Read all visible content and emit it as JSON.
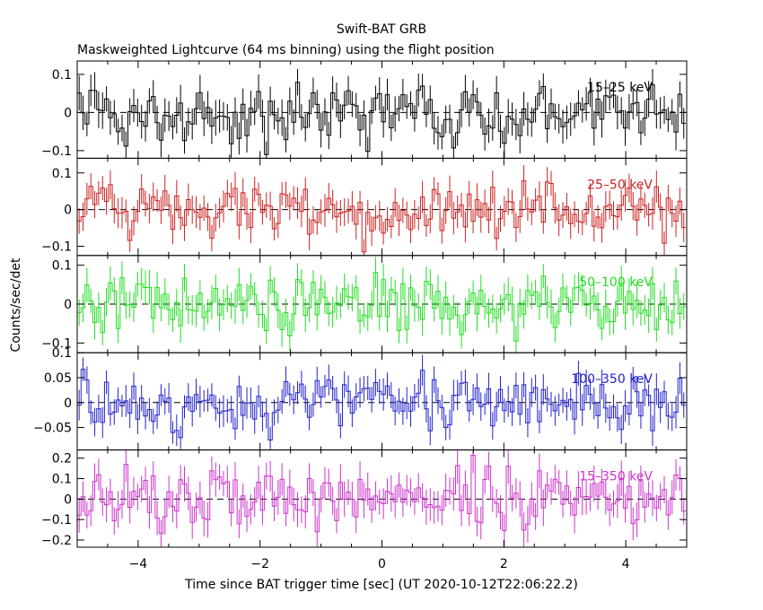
{
  "title": "Swift-BAT GRB",
  "subtitle": "Maskweighted Lightcurve (64 ms binning) using the flight position",
  "ylabel": "Counts/sec/det",
  "xlabel": "Time since BAT trigger time [sec] (UT 2020-10-12T22:06:22.2)",
  "chart_data": {
    "type": "line",
    "title": "Swift-BAT GRB",
    "subtitle": "Maskweighted Lightcurve (64 ms binning) using the flight position",
    "xlabel": "Time since BAT trigger time [sec] (UT 2020-10-12T22:06:22.2)",
    "ylabel": "Counts/sec/det",
    "xlim": [
      -5,
      5
    ],
    "x_ticks": [
      -4,
      -2,
      0,
      2,
      4
    ],
    "x_tick_labels": [
      "−4",
      "−2",
      "0",
      "2",
      "4"
    ],
    "bin_width_s": 0.064,
    "panels": [
      {
        "label": "15–25 keV",
        "color": "#000000",
        "ylim": [
          -0.12,
          0.135
        ],
        "y_ticks": [
          -0.1,
          0,
          0.1
        ],
        "y_tick_labels": [
          "−0.1",
          "0",
          "0.1"
        ],
        "noise": 0.04
      },
      {
        "label": "25–50 keV",
        "color": "#cc2222",
        "ylim": [
          -0.125,
          0.14
        ],
        "y_ticks": [
          -0.1,
          0,
          0.1
        ],
        "y_tick_labels": [
          "−0.1",
          "0",
          "0.1"
        ],
        "noise": 0.038
      },
      {
        "label": "50–100 keV",
        "color": "#22dd22",
        "ylim": [
          -0.125,
          0.125
        ],
        "y_ticks": [
          -0.1,
          0,
          0.1
        ],
        "y_tick_labels": [
          "−0.1",
          "0",
          "0.1"
        ],
        "noise": 0.038
      },
      {
        "label": "100–350 keV",
        "color": "#2222cc",
        "ylim": [
          -0.095,
          0.1
        ],
        "y_ticks": [
          -0.05,
          0,
          0.05,
          0.1
        ],
        "y_tick_labels": [
          "−0.05",
          "0",
          "0.05",
          "0.1"
        ],
        "noise": 0.027
      },
      {
        "label": "15–350 keV",
        "color": "#cc33cc",
        "ylim": [
          -0.235,
          0.24
        ],
        "y_ticks": [
          -0.2,
          -0.1,
          0,
          0.1,
          0.2
        ],
        "y_tick_labels": [
          "−0.2",
          "−0.1",
          "0",
          "0.1",
          "0.2"
        ],
        "noise": 0.075
      }
    ]
  }
}
